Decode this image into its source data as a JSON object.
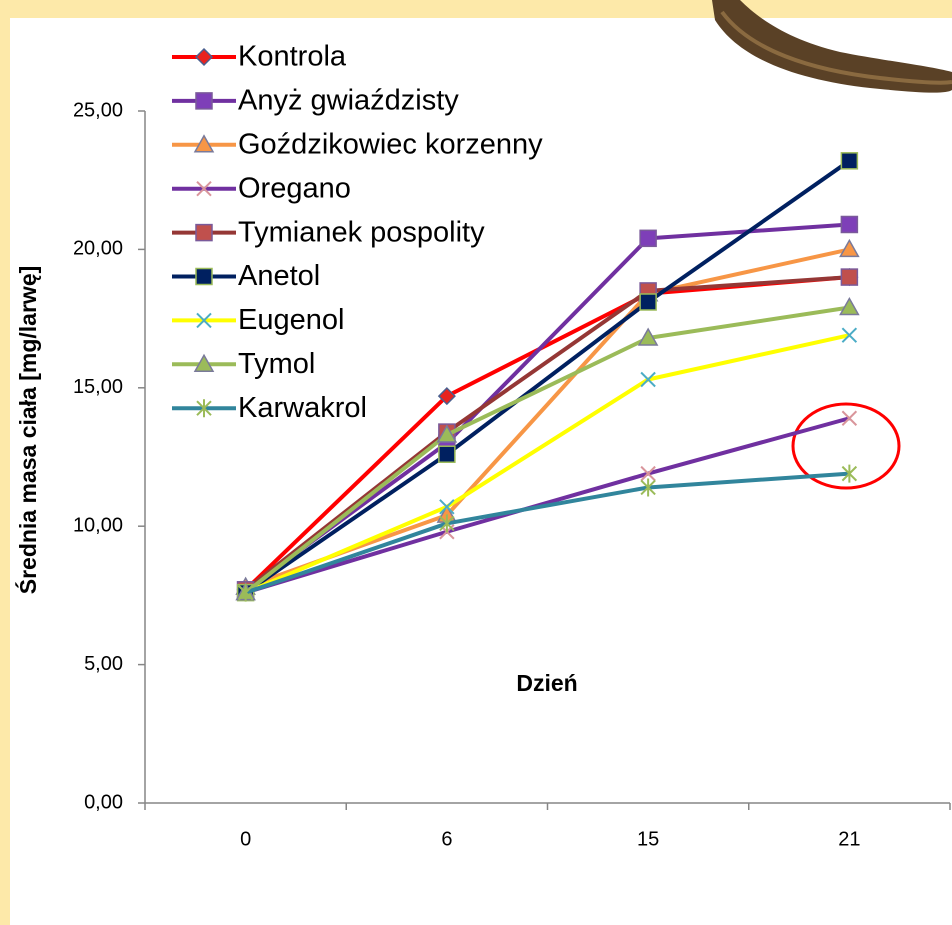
{
  "chart_data": {
    "type": "line",
    "x_label": "Dzień",
    "y_label": "Średnia masa ciała [mg/larwę]",
    "categories": [
      "0",
      "6",
      "15",
      "21"
    ],
    "ylim": [
      0,
      25
    ],
    "yticks": [
      {
        "value": 0,
        "label": "0,00"
      },
      {
        "value": 5,
        "label": "5,00"
      },
      {
        "value": 10,
        "label": "10,00"
      },
      {
        "value": 15,
        "label": "15,00"
      },
      {
        "value": 20,
        "label": "20,00"
      },
      {
        "value": 25,
        "label": "25,00"
      }
    ],
    "series": [
      {
        "name": "Kontrola",
        "color": "#ff0000",
        "marker": "diamond",
        "marker_color": "#e8231f",
        "values": [
          7.7,
          14.7,
          18.4,
          19.0
        ]
      },
      {
        "name": "Anyż gwiaździsty",
        "color": "#7030a0",
        "marker": "square",
        "marker_color": "#7e3fb8",
        "values": [
          7.7,
          13.0,
          20.4,
          20.9
        ]
      },
      {
        "name": "Goździkowiec korzenny",
        "color": "#f79646",
        "marker": "triangle",
        "marker_color": "#f79646",
        "values": [
          7.8,
          10.4,
          18.4,
          20.0
        ]
      },
      {
        "name": "Oregano",
        "color": "#7030a0",
        "marker": "x",
        "marker_color": "#d9959b",
        "values": [
          7.6,
          9.8,
          11.9,
          13.9
        ]
      },
      {
        "name": "Tymianek pospolity",
        "color": "#953735",
        "marker": "square",
        "marker_color": "#c0504d",
        "values": [
          7.7,
          13.4,
          18.5,
          19.0
        ]
      },
      {
        "name": "Anetol",
        "color": "#002060",
        "marker": "square",
        "marker_color": "#002060",
        "values": [
          7.6,
          12.6,
          18.1,
          23.2
        ]
      },
      {
        "name": "Eugenol",
        "color": "#ffff00",
        "marker": "x",
        "marker_color": "#4bacc6",
        "values": [
          7.6,
          10.7,
          15.3,
          16.9
        ]
      },
      {
        "name": "Tymol",
        "color": "#9bbb59",
        "marker": "triangle",
        "marker_color": "#9bbb59",
        "values": [
          7.6,
          13.3,
          16.8,
          17.9
        ]
      },
      {
        "name": "Karwakrol",
        "color": "#31859c",
        "marker": "star",
        "marker_color": "#9bbb59",
        "values": [
          7.6,
          10.1,
          11.4,
          11.9
        ]
      }
    ]
  }
}
